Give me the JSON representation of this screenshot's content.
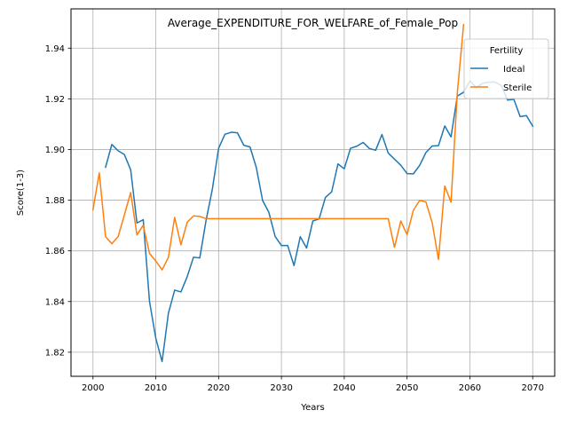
{
  "chart_data": {
    "type": "line",
    "title": "Average_EXPENDITURE_FOR_WELFARE_of_Female_Pop",
    "xlabel": "Years",
    "ylabel": "Score(1-3)",
    "xlim": [
      1996.5,
      2073.5
    ],
    "ylim": [
      1.8105,
      1.9555
    ],
    "xticks": [
      2000,
      2010,
      2020,
      2030,
      2040,
      2050,
      2060,
      2070
    ],
    "yticks": [
      1.82,
      1.84,
      1.86,
      1.88,
      1.9,
      1.92,
      1.94
    ],
    "ytick_labels": [
      "1.82",
      "1.84",
      "1.86",
      "1.88",
      "1.90",
      "1.92",
      "1.94"
    ],
    "grid": true,
    "legend": {
      "title": "Fertility",
      "placement": "top-right"
    },
    "series": [
      {
        "name": "Ideal",
        "color": "#1f77b4",
        "x": [
          2002,
          2003,
          2004,
          2005,
          2006,
          2007,
          2008,
          2009,
          2010,
          2011,
          2012,
          2013,
          2014,
          2015,
          2016,
          2017,
          2018,
          2019,
          2020,
          2021,
          2022,
          2023,
          2024,
          2025,
          2026,
          2027,
          2028,
          2029,
          2030,
          2031,
          2032,
          2033,
          2034,
          2035,
          2036,
          2037,
          2038,
          2039,
          2040,
          2041,
          2042,
          2043,
          2044,
          2045,
          2046,
          2047,
          2048,
          2049,
          2050,
          2051,
          2052,
          2053,
          2054,
          2055,
          2056,
          2057,
          2058,
          2059,
          2060,
          2061,
          2062,
          2063,
          2064,
          2065,
          2066,
          2067,
          2068,
          2069,
          2070
        ],
        "y": [
          1.893,
          1.902,
          1.8995,
          1.898,
          1.892,
          1.871,
          1.8723,
          1.84,
          1.8255,
          1.8163,
          1.8353,
          1.8445,
          1.8438,
          1.8498,
          1.8575,
          1.8572,
          1.872,
          1.8843,
          1.9005,
          1.906,
          1.9068,
          1.9066,
          1.9017,
          1.901,
          1.8929,
          1.8799,
          1.8752,
          1.8657,
          1.8621,
          1.8621,
          1.8542,
          1.8656,
          1.8611,
          1.8718,
          1.8726,
          1.8811,
          1.8833,
          1.8943,
          1.8924,
          1.9005,
          1.9013,
          1.9028,
          1.9004,
          1.8997,
          1.9059,
          1.8986,
          1.8962,
          1.8938,
          1.8905,
          1.8904,
          1.8937,
          1.8988,
          1.9014,
          1.9015,
          1.9093,
          1.905,
          1.9211,
          1.9226,
          1.9271,
          1.9244,
          1.9261,
          1.9266,
          1.9266,
          1.9253,
          1.9195,
          1.9198,
          1.913,
          1.9134,
          1.9092
        ]
      },
      {
        "name": "Sterile",
        "color": "#ff7f0e",
        "x": [
          2000,
          2001,
          2002,
          2003,
          2004,
          2005,
          2006,
          2007,
          2008,
          2009,
          2010,
          2011,
          2012,
          2013,
          2014,
          2015,
          2016,
          2017,
          2018,
          2019,
          2020,
          2021,
          2022,
          2023,
          2024,
          2025,
          2026,
          2027,
          2028,
          2029,
          2030,
          2031,
          2032,
          2033,
          2034,
          2035,
          2036,
          2037,
          2038,
          2039,
          2040,
          2041,
          2042,
          2043,
          2044,
          2045,
          2046,
          2047,
          2048,
          2049,
          2050,
          2051,
          2052,
          2053,
          2054,
          2055,
          2056,
          2057,
          2058,
          2059
        ],
        "y": [
          1.8762,
          1.8908,
          1.8656,
          1.8628,
          1.8656,
          1.8742,
          1.883,
          1.8663,
          1.8701,
          1.859,
          1.856,
          1.8525,
          1.8574,
          1.8732,
          1.8624,
          1.8713,
          1.8738,
          1.8736,
          1.8727,
          1.8727,
          1.8727,
          1.8727,
          1.8727,
          1.8727,
          1.8727,
          1.8727,
          1.8727,
          1.8727,
          1.8727,
          1.8727,
          1.8727,
          1.8727,
          1.8727,
          1.8727,
          1.8727,
          1.8727,
          1.8727,
          1.8727,
          1.8727,
          1.8727,
          1.8727,
          1.8727,
          1.8727,
          1.8727,
          1.8727,
          1.8727,
          1.8727,
          1.8727,
          1.8614,
          1.8718,
          1.8664,
          1.876,
          1.8799,
          1.8793,
          1.8711,
          1.8566,
          1.8856,
          1.8792,
          1.9224,
          1.9493
        ]
      }
    ]
  }
}
